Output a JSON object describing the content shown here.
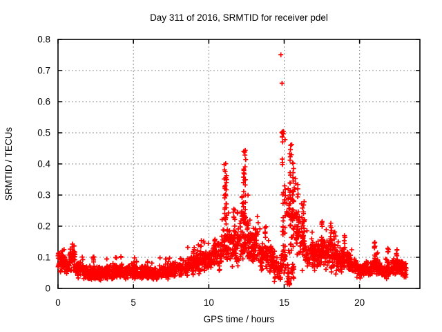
{
  "window": {
    "background": "#ffffff"
  },
  "chart_data": {
    "type": "scatter",
    "title": "Day 311 of 2016, SRMTID for receiver pdel",
    "xlabel": "GPS time / hours",
    "ylabel": "SRMTID / TECUs",
    "xlim": [
      0,
      24
    ],
    "ylim": [
      0,
      0.8
    ],
    "grid": true,
    "legend": "none",
    "xticks": [
      {
        "v": 0,
        "label": "0"
      },
      {
        "v": 5,
        "label": "5"
      },
      {
        "v": 10,
        "label": "10"
      },
      {
        "v": 15,
        "label": "15"
      },
      {
        "v": 20,
        "label": "20"
      }
    ],
    "yticks": [
      {
        "v": 0.0,
        "label": "0"
      },
      {
        "v": 0.1,
        "label": "0.1"
      },
      {
        "v": 0.2,
        "label": "0.2"
      },
      {
        "v": 0.3,
        "label": "0.3"
      },
      {
        "v": 0.4,
        "label": "0.4"
      },
      {
        "v": 0.5,
        "label": "0.5"
      },
      {
        "v": 0.6,
        "label": "0.6"
      },
      {
        "v": 0.7,
        "label": "0.7"
      },
      {
        "v": 0.8,
        "label": "0.8"
      }
    ],
    "marker": {
      "shape": "plus",
      "size": 7,
      "stroke_width": 1.7,
      "color": "#ff0000"
    },
    "grid_style": {
      "color": "#8c8c8c",
      "dash": "2 3",
      "width": 1
    },
    "axis_style": {
      "color": "#000000",
      "border_width": 1.6,
      "tick_length": 6
    },
    "seed": 311,
    "band_segments": [
      {
        "x0": 0.0,
        "x1": 0.45,
        "mid": 0.085,
        "lo": 0.04,
        "hi": 0.125,
        "n": 45
      },
      {
        "x0": 0.45,
        "x1": 0.8,
        "mid": 0.07,
        "lo": 0.035,
        "hi": 0.11,
        "n": 35
      },
      {
        "x0": 0.8,
        "x1": 1.15,
        "mid": 0.095,
        "lo": 0.045,
        "hi": 0.155,
        "n": 35
      },
      {
        "x0": 1.15,
        "x1": 1.65,
        "mid": 0.06,
        "lo": 0.03,
        "hi": 0.105,
        "n": 50
      },
      {
        "x0": 1.65,
        "x1": 2.7,
        "mid": 0.05,
        "lo": 0.025,
        "hi": 0.09,
        "n": 105
      },
      {
        "x0": 2.7,
        "x1": 3.7,
        "mid": 0.048,
        "lo": 0.025,
        "hi": 0.092,
        "n": 100
      },
      {
        "x0": 3.7,
        "x1": 4.7,
        "mid": 0.05,
        "lo": 0.027,
        "hi": 0.1,
        "n": 100
      },
      {
        "x0": 4.7,
        "x1": 5.7,
        "mid": 0.05,
        "lo": 0.025,
        "hi": 0.095,
        "n": 100
      },
      {
        "x0": 5.7,
        "x1": 6.7,
        "mid": 0.047,
        "lo": 0.025,
        "hi": 0.09,
        "n": 100
      },
      {
        "x0": 6.7,
        "x1": 7.6,
        "mid": 0.05,
        "lo": 0.03,
        "hi": 0.1,
        "n": 90
      },
      {
        "x0": 7.6,
        "x1": 8.6,
        "mid": 0.062,
        "lo": 0.032,
        "hi": 0.115,
        "n": 100
      },
      {
        "x0": 8.6,
        "x1": 9.4,
        "mid": 0.075,
        "lo": 0.04,
        "hi": 0.14,
        "n": 80
      },
      {
        "x0": 9.4,
        "x1": 10.25,
        "mid": 0.088,
        "lo": 0.05,
        "hi": 0.155,
        "n": 85
      },
      {
        "x0": 10.25,
        "x1": 10.85,
        "mid": 0.105,
        "lo": 0.055,
        "hi": 0.2,
        "n": 60
      },
      {
        "x0": 10.85,
        "x1": 11.4,
        "mid": 0.13,
        "lo": 0.065,
        "hi": 0.27,
        "n": 55
      },
      {
        "x0": 11.4,
        "x1": 11.95,
        "mid": 0.125,
        "lo": 0.06,
        "hi": 0.25,
        "n": 55
      },
      {
        "x0": 11.95,
        "x1": 12.65,
        "mid": 0.155,
        "lo": 0.075,
        "hi": 0.3,
        "n": 70
      },
      {
        "x0": 12.65,
        "x1": 13.4,
        "mid": 0.135,
        "lo": 0.065,
        "hi": 0.24,
        "n": 75
      },
      {
        "x0": 13.4,
        "x1": 14.3,
        "mid": 0.1,
        "lo": 0.04,
        "hi": 0.2,
        "n": 90
      },
      {
        "x0": 14.3,
        "x1": 14.78,
        "mid": 0.06,
        "lo": 0.02,
        "hi": 0.12,
        "n": 45
      },
      {
        "x0": 14.78,
        "x1": 15.16,
        "mid": 0.09,
        "lo": 0.025,
        "hi": 0.2,
        "n": 25
      },
      {
        "x0": 15.16,
        "x1": 15.8,
        "mid": 0.22,
        "lo": 0.08,
        "hi": 0.38,
        "n": 55
      },
      {
        "x0": 15.8,
        "x1": 16.4,
        "mid": 0.16,
        "lo": 0.05,
        "hi": 0.3,
        "n": 60
      },
      {
        "x0": 16.4,
        "x1": 17.3,
        "mid": 0.105,
        "lo": 0.05,
        "hi": 0.19,
        "n": 90
      },
      {
        "x0": 17.3,
        "x1": 18.4,
        "mid": 0.11,
        "lo": 0.05,
        "hi": 0.2,
        "n": 110
      },
      {
        "x0": 18.4,
        "x1": 19.25,
        "mid": 0.09,
        "lo": 0.045,
        "hi": 0.17,
        "n": 85
      },
      {
        "x0": 19.25,
        "x1": 19.8,
        "mid": 0.075,
        "lo": 0.04,
        "hi": 0.13,
        "n": 55
      },
      {
        "x0": 19.8,
        "x1": 20.85,
        "mid": 0.06,
        "lo": 0.03,
        "hi": 0.1,
        "n": 105
      },
      {
        "x0": 20.85,
        "x1": 21.25,
        "mid": 0.07,
        "lo": 0.035,
        "hi": 0.12,
        "n": 40
      },
      {
        "x0": 21.25,
        "x1": 22.15,
        "mid": 0.055,
        "lo": 0.028,
        "hi": 0.095,
        "n": 90
      },
      {
        "x0": 22.15,
        "x1": 22.85,
        "mid": 0.065,
        "lo": 0.03,
        "hi": 0.115,
        "n": 70
      },
      {
        "x0": 22.85,
        "x1": 23.1,
        "mid": 0.06,
        "lo": 0.03,
        "hi": 0.1,
        "n": 25
      }
    ],
    "spike_columns": [
      {
        "x": 1.0,
        "w": 0.14,
        "lo": 0.1,
        "hi": 0.155,
        "n": 8
      },
      {
        "x": 2.35,
        "w": 0.06,
        "lo": 0.06,
        "hi": 0.105,
        "n": 5
      },
      {
        "x": 3.25,
        "w": 0.06,
        "lo": 0.06,
        "hi": 0.1,
        "n": 5
      },
      {
        "x": 4.2,
        "w": 0.06,
        "lo": 0.06,
        "hi": 0.105,
        "n": 5
      },
      {
        "x": 5.05,
        "w": 0.06,
        "lo": 0.06,
        "hi": 0.1,
        "n": 5
      },
      {
        "x": 5.95,
        "w": 0.06,
        "lo": 0.06,
        "hi": 0.098,
        "n": 5
      },
      {
        "x": 7.15,
        "w": 0.06,
        "lo": 0.06,
        "hi": 0.1,
        "n": 5
      },
      {
        "x": 9.0,
        "w": 0.07,
        "lo": 0.08,
        "hi": 0.142,
        "n": 8
      },
      {
        "x": 10.4,
        "w": 0.07,
        "lo": 0.1,
        "hi": 0.19,
        "n": 8
      },
      {
        "x": 11.1,
        "w": 0.16,
        "lo": 0.2,
        "hi": 0.4,
        "n": 26
      },
      {
        "x": 11.68,
        "w": 0.1,
        "lo": 0.15,
        "hi": 0.26,
        "n": 12
      },
      {
        "x": 12.2,
        "w": 0.08,
        "lo": 0.16,
        "hi": 0.3,
        "n": 10
      },
      {
        "x": 12.37,
        "w": 0.16,
        "lo": 0.22,
        "hi": 0.445,
        "n": 28
      },
      {
        "x": 13.75,
        "w": 0.1,
        "lo": 0.1,
        "hi": 0.21,
        "n": 8
      },
      {
        "x": 14.9,
        "w": 0.1,
        "lo": 0.12,
        "hi": 0.51,
        "n": 22
      },
      {
        "x": 15.05,
        "w": 0.07,
        "lo": 0.05,
        "hi": 0.33,
        "n": 10
      },
      {
        "x": 15.28,
        "w": 0.18,
        "lo": 0.01,
        "hi": 0.08,
        "n": 18
      },
      {
        "x": 15.42,
        "w": 0.12,
        "lo": 0.24,
        "hi": 0.47,
        "n": 16
      },
      {
        "x": 15.58,
        "w": 0.12,
        "lo": 0.22,
        "hi": 0.45,
        "n": 14
      },
      {
        "x": 15.6,
        "w": 0.3,
        "lo": 0.03,
        "hi": 0.08,
        "n": 12
      },
      {
        "x": 15.9,
        "w": 0.1,
        "lo": 0.15,
        "hi": 0.35,
        "n": 10
      },
      {
        "x": 16.3,
        "w": 0.08,
        "lo": 0.12,
        "hi": 0.28,
        "n": 9
      },
      {
        "x": 17.5,
        "w": 0.09,
        "lo": 0.12,
        "hi": 0.22,
        "n": 10
      },
      {
        "x": 18.1,
        "w": 0.09,
        "lo": 0.12,
        "hi": 0.21,
        "n": 10
      },
      {
        "x": 19.0,
        "w": 0.07,
        "lo": 0.1,
        "hi": 0.19,
        "n": 8
      },
      {
        "x": 21.0,
        "w": 0.08,
        "lo": 0.07,
        "hi": 0.155,
        "n": 12
      },
      {
        "x": 21.9,
        "w": 0.06,
        "lo": 0.06,
        "hi": 0.13,
        "n": 7
      },
      {
        "x": 22.45,
        "w": 0.1,
        "lo": 0.06,
        "hi": 0.125,
        "n": 8
      }
    ],
    "outlier_points": [
      [
        14.78,
        0.751
      ],
      [
        14.86,
        0.659
      ],
      [
        14.87,
        0.503
      ],
      [
        15.06,
        0.478
      ],
      [
        12.38,
        0.438
      ],
      [
        15.5,
        0.462
      ],
      [
        11.12,
        0.401
      ]
    ]
  }
}
